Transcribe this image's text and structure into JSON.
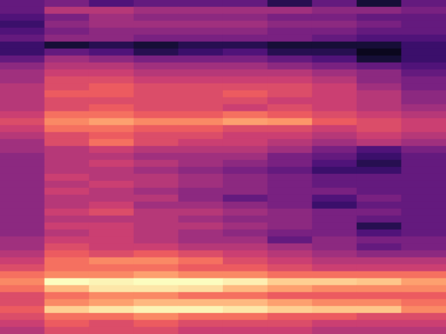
{
  "chart_data": {
    "type": "heatmap",
    "tick_labels": false,
    "zlim": [
      0,
      1
    ],
    "cells": [
      [
        0.3,
        0.35,
        0.25,
        0.3,
        0.3,
        0.3,
        0.15,
        0.3,
        0.1,
        0.3
      ],
      [
        0.3,
        0.5,
        0.5,
        0.45,
        0.45,
        0.45,
        0.45,
        0.4,
        0.4,
        0.35
      ],
      [
        0.25,
        0.35,
        0.45,
        0.4,
        0.4,
        0.4,
        0.35,
        0.35,
        0.3,
        0.3
      ],
      [
        0.2,
        0.4,
        0.45,
        0.45,
        0.45,
        0.45,
        0.4,
        0.4,
        0.35,
        0.3
      ],
      [
        0.25,
        0.35,
        0.4,
        0.4,
        0.4,
        0.4,
        0.35,
        0.35,
        0.3,
        0.3
      ],
      [
        0.3,
        0.4,
        0.4,
        0.35,
        0.35,
        0.35,
        0.35,
        0.3,
        0.25,
        0.25
      ],
      [
        0.2,
        0.1,
        0.15,
        0.1,
        0.15,
        0.15,
        0.1,
        0.1,
        0.1,
        0.2
      ],
      [
        0.2,
        0.3,
        0.25,
        0.15,
        0.2,
        0.25,
        0.15,
        0.15,
        0.05,
        0.2
      ],
      [
        0.3,
        0.45,
        0.4,
        0.35,
        0.35,
        0.35,
        0.3,
        0.25,
        0.1,
        0.2
      ],
      [
        0.4,
        0.5,
        0.5,
        0.45,
        0.45,
        0.45,
        0.4,
        0.35,
        0.3,
        0.25
      ],
      [
        0.45,
        0.55,
        0.55,
        0.5,
        0.5,
        0.5,
        0.5,
        0.45,
        0.4,
        0.3
      ],
      [
        0.45,
        0.6,
        0.6,
        0.55,
        0.55,
        0.55,
        0.55,
        0.5,
        0.4,
        0.35
      ],
      [
        0.5,
        0.6,
        0.65,
        0.6,
        0.6,
        0.6,
        0.6,
        0.55,
        0.45,
        0.35
      ],
      [
        0.5,
        0.65,
        0.65,
        0.6,
        0.6,
        0.65,
        0.6,
        0.55,
        0.5,
        0.4
      ],
      [
        0.5,
        0.6,
        0.6,
        0.6,
        0.6,
        0.6,
        0.55,
        0.55,
        0.5,
        0.4
      ],
      [
        0.5,
        0.6,
        0.65,
        0.6,
        0.6,
        0.55,
        0.6,
        0.55,
        0.5,
        0.45
      ],
      [
        0.55,
        0.7,
        0.7,
        0.65,
        0.65,
        0.7,
        0.65,
        0.6,
        0.55,
        0.5
      ],
      [
        0.6,
        0.75,
        0.8,
        0.75,
        0.75,
        0.8,
        0.78,
        0.65,
        0.6,
        0.55
      ],
      [
        0.55,
        0.7,
        0.7,
        0.65,
        0.65,
        0.6,
        0.6,
        0.55,
        0.6,
        0.55
      ],
      [
        0.5,
        0.6,
        0.65,
        0.6,
        0.6,
        0.55,
        0.55,
        0.5,
        0.55,
        0.5
      ],
      [
        0.45,
        0.6,
        0.7,
        0.6,
        0.55,
        0.55,
        0.5,
        0.45,
        0.5,
        0.45
      ],
      [
        0.45,
        0.5,
        0.55,
        0.5,
        0.5,
        0.5,
        0.45,
        0.35,
        0.25,
        0.35
      ],
      [
        0.4,
        0.5,
        0.5,
        0.45,
        0.45,
        0.45,
        0.35,
        0.3,
        0.2,
        0.3
      ],
      [
        0.4,
        0.5,
        0.55,
        0.5,
        0.45,
        0.4,
        0.35,
        0.25,
        0.15,
        0.3
      ],
      [
        0.4,
        0.5,
        0.5,
        0.45,
        0.4,
        0.35,
        0.3,
        0.2,
        0.2,
        0.3
      ],
      [
        0.4,
        0.55,
        0.5,
        0.5,
        0.45,
        0.4,
        0.35,
        0.3,
        0.3,
        0.3
      ],
      [
        0.4,
        0.5,
        0.55,
        0.5,
        0.45,
        0.4,
        0.35,
        0.3,
        0.3,
        0.3
      ],
      [
        0.4,
        0.55,
        0.5,
        0.45,
        0.4,
        0.4,
        0.35,
        0.35,
        0.3,
        0.3
      ],
      [
        0.4,
        0.5,
        0.5,
        0.5,
        0.4,
        0.3,
        0.35,
        0.25,
        0.35,
        0.3
      ],
      [
        0.4,
        0.5,
        0.55,
        0.45,
        0.45,
        0.4,
        0.35,
        0.2,
        0.3,
        0.3
      ],
      [
        0.4,
        0.55,
        0.6,
        0.5,
        0.5,
        0.45,
        0.4,
        0.35,
        0.35,
        0.3
      ],
      [
        0.4,
        0.5,
        0.5,
        0.5,
        0.45,
        0.4,
        0.4,
        0.35,
        0.3,
        0.3
      ],
      [
        0.4,
        0.55,
        0.55,
        0.5,
        0.5,
        0.45,
        0.4,
        0.35,
        0.15,
        0.3
      ],
      [
        0.4,
        0.5,
        0.55,
        0.5,
        0.45,
        0.4,
        0.35,
        0.35,
        0.25,
        0.3
      ],
      [
        0.45,
        0.55,
        0.55,
        0.5,
        0.45,
        0.45,
        0.3,
        0.4,
        0.35,
        0.35
      ],
      [
        0.45,
        0.6,
        0.55,
        0.55,
        0.5,
        0.5,
        0.45,
        0.4,
        0.3,
        0.35
      ],
      [
        0.5,
        0.65,
        0.6,
        0.65,
        0.6,
        0.55,
        0.5,
        0.45,
        0.4,
        0.4
      ],
      [
        0.55,
        0.7,
        0.75,
        0.75,
        0.7,
        0.6,
        0.55,
        0.5,
        0.5,
        0.5
      ],
      [
        0.6,
        0.7,
        0.7,
        0.7,
        0.65,
        0.65,
        0.6,
        0.55,
        0.55,
        0.55
      ],
      [
        0.7,
        0.75,
        0.75,
        0.8,
        0.75,
        0.75,
        0.7,
        0.7,
        0.7,
        0.7
      ],
      [
        0.75,
        1.0,
        0.98,
        1.0,
        1.0,
        0.97,
        0.9,
        0.9,
        0.88,
        0.8
      ],
      [
        0.7,
        0.85,
        0.95,
        0.95,
        0.93,
        0.85,
        0.8,
        0.75,
        0.75,
        0.75
      ],
      [
        0.6,
        0.7,
        0.75,
        0.75,
        0.7,
        0.7,
        0.65,
        0.65,
        0.65,
        0.65
      ],
      [
        0.6,
        0.75,
        0.8,
        0.85,
        0.85,
        0.85,
        0.8,
        0.75,
        0.75,
        0.7
      ],
      [
        0.65,
        0.9,
        0.95,
        0.98,
        0.98,
        0.95,
        0.9,
        0.88,
        0.88,
        0.75
      ],
      [
        0.6,
        0.7,
        0.7,
        0.75,
        0.7,
        0.7,
        0.65,
        0.65,
        0.6,
        0.6
      ],
      [
        0.55,
        0.65,
        0.6,
        0.65,
        0.6,
        0.6,
        0.6,
        0.55,
        0.55,
        0.55
      ],
      [
        0.5,
        0.6,
        0.6,
        0.6,
        0.55,
        0.55,
        0.55,
        0.5,
        0.5,
        0.5
      ]
    ]
  }
}
